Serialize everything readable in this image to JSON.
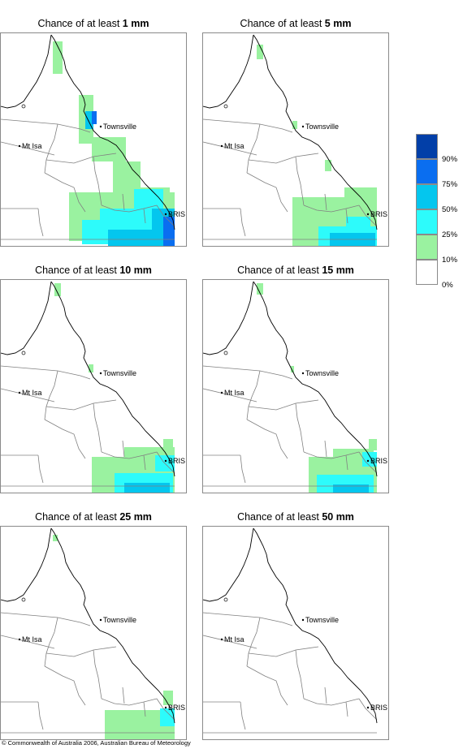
{
  "colors": {
    "band_10_25": "#9af2a0",
    "band_25_50": "#2dfbfb",
    "band_50_75": "#04c6ee",
    "band_75_90": "#0a6ef0",
    "band_90_100": "#023fa8",
    "boundary": "#808080",
    "coast": "#000000"
  },
  "places": {
    "townsville": "Townsville",
    "mt_isa": "Mt Isa",
    "bris": "BRIS"
  },
  "panels": [
    {
      "prefix": "Chance of at least ",
      "amount": "1 mm"
    },
    {
      "prefix": "Chance of at least ",
      "amount": "5 mm"
    },
    {
      "prefix": "Chance of at least ",
      "amount": "10 mm"
    },
    {
      "prefix": "Chance of at least ",
      "amount": "15 mm"
    },
    {
      "prefix": "Chance of at least ",
      "amount": "25 mm"
    },
    {
      "prefix": "Chance of at least ",
      "amount": "50 mm"
    }
  ],
  "legend": {
    "ticks": [
      "90%",
      "75%",
      "50%",
      "25%",
      "10%",
      "0%"
    ]
  },
  "footer": "© Commonwealth of Australia 2006, Australian Bureau of Meteorology"
}
